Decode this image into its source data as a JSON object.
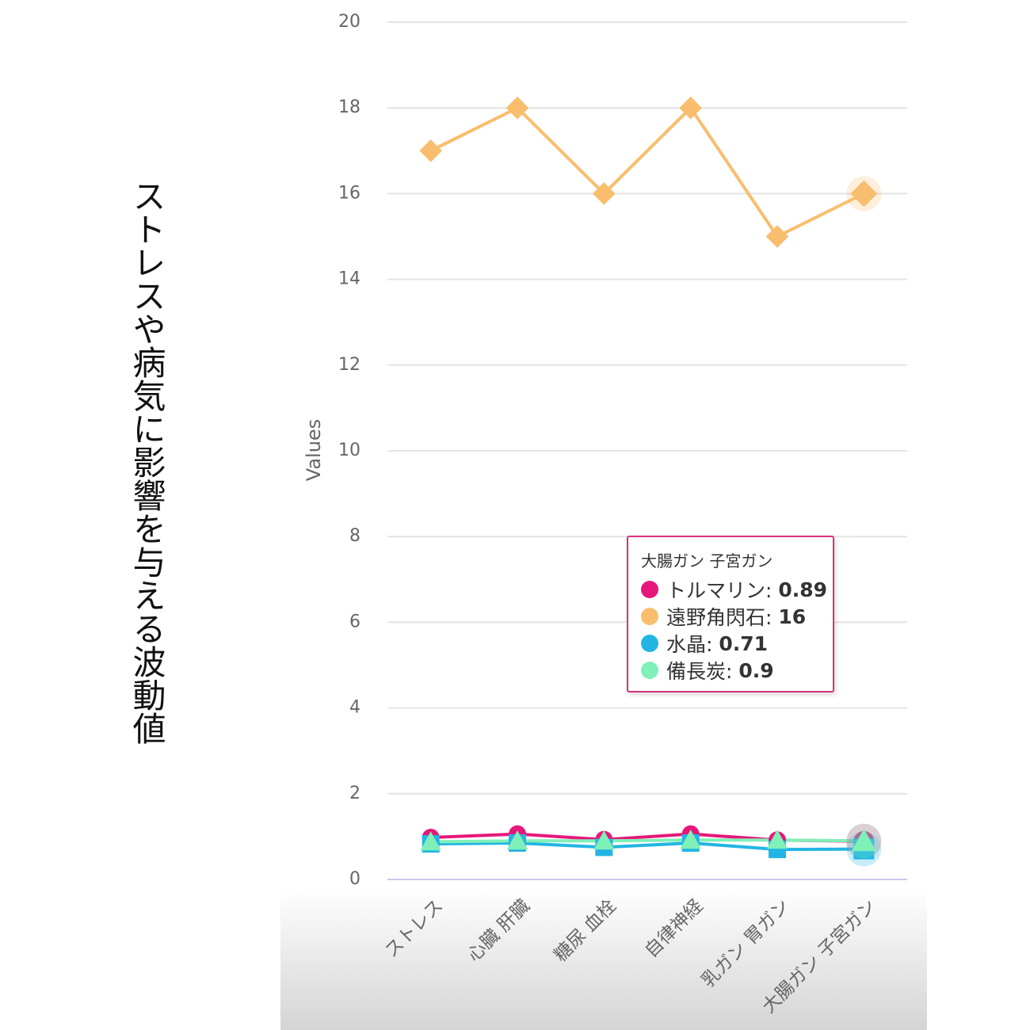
{
  "chart_data": {
    "type": "line",
    "title": "ストレスや病気に影響を与える波動値",
    "y_label": "Values",
    "categories": [
      "ストレス",
      "心臓 肝臓",
      "糖尿 血栓",
      "自律神経",
      "乳ガン 胃ガン",
      "大腸ガン 子宮ガン"
    ],
    "series": [
      {
        "name": "トルマリン",
        "color": "#e6177a",
        "marker": "circle",
        "values": [
          0.98,
          1.06,
          0.93,
          1.06,
          0.92,
          0.89
        ]
      },
      {
        "name": "遠野角閃石",
        "color": "#f8be6e",
        "marker": "diamond",
        "values": [
          17,
          18,
          16,
          18,
          15,
          16
        ]
      },
      {
        "name": "水晶",
        "color": "#22b5e3",
        "marker": "square",
        "values": [
          0.83,
          0.85,
          0.75,
          0.85,
          0.7,
          0.71
        ]
      },
      {
        "name": "備長炭",
        "color": "#7ef0b8",
        "marker": "triangle",
        "values": [
          0.88,
          0.9,
          0.9,
          0.92,
          0.92,
          0.9
        ]
      }
    ],
    "ylim": [
      0,
      20
    ],
    "yticks": [
      0,
      2,
      4,
      6,
      8,
      10,
      12,
      14,
      16,
      18,
      20
    ],
    "grid": true,
    "tooltip_category": 5
  }
}
